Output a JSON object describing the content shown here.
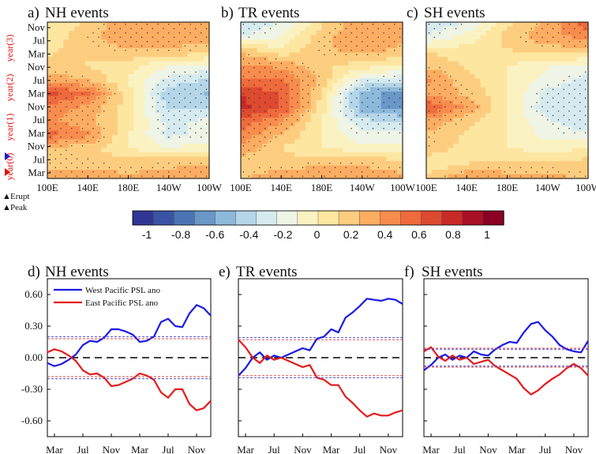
{
  "chart_data": [
    {
      "panel": "a)",
      "title": "NH events",
      "type": "heatmap",
      "x_ticks": [
        "100E",
        "140E",
        "180E",
        "140W",
        "100W"
      ],
      "y_ticks": [
        "Nov",
        "Jul",
        "Mar",
        "Nov",
        "Jul",
        "Mar",
        "Nov",
        "Jul",
        "Mar",
        "Nov",
        "Jul",
        "Mar"
      ],
      "year_labels": [
        "year(3)",
        "year(2)",
        "year(1)",
        "year(0)"
      ],
      "markers": [
        {
          "kind": "Erupt",
          "month": "Jan",
          "year": 0
        },
        {
          "kind": "Peak",
          "month": "Sep",
          "year": 0
        }
      ],
      "pattern_rows": [
        {
          "month": "Nov",
          "year": 3,
          "values": [
            0.0,
            0.15,
            0.3,
            0.3,
            0.3
          ]
        },
        {
          "month": "Jul",
          "year": 3,
          "values": [
            0.05,
            0.2,
            0.3,
            0.3,
            0.25
          ]
        },
        {
          "month": "Mar",
          "year": 3,
          "values": [
            0.1,
            0.15,
            0.2,
            0.2,
            0.15
          ]
        },
        {
          "month": "Nov",
          "year": 2,
          "values": [
            0.15,
            0.1,
            0.05,
            -0.1,
            -0.15
          ]
        },
        {
          "month": "Jul",
          "year": 2,
          "values": [
            0.3,
            0.2,
            0.0,
            -0.25,
            -0.35
          ]
        },
        {
          "month": "Mar",
          "year": 2,
          "values": [
            0.6,
            0.45,
            0.05,
            -0.4,
            -0.45
          ]
        },
        {
          "month": "Nov",
          "year": 1,
          "values": [
            0.4,
            0.3,
            0.05,
            -0.35,
            -0.35
          ]
        },
        {
          "month": "Jul",
          "year": 1,
          "values": [
            0.35,
            0.25,
            0.05,
            -0.25,
            -0.2
          ]
        },
        {
          "month": "Mar",
          "year": 1,
          "values": [
            0.5,
            0.35,
            0.0,
            -0.25,
            -0.2
          ]
        },
        {
          "month": "Nov",
          "year": 0,
          "values": [
            0.2,
            0.15,
            0.0,
            -0.1,
            -0.05
          ]
        },
        {
          "month": "Jul",
          "year": 0,
          "values": [
            0.2,
            0.2,
            0.15,
            0.2,
            0.2
          ]
        },
        {
          "month": "Mar",
          "year": 0,
          "values": [
            0.25,
            0.25,
            0.25,
            0.25,
            0.3
          ]
        }
      ]
    },
    {
      "panel": "b)",
      "title": "TR events",
      "type": "heatmap",
      "x_ticks": [
        "100E",
        "140E",
        "180E",
        "140W",
        "100W"
      ],
      "pattern_rows": [
        {
          "month": "Nov",
          "year": 3,
          "values": [
            -0.3,
            -0.2,
            0.1,
            0.3,
            0.3
          ]
        },
        {
          "month": "Jul",
          "year": 3,
          "values": [
            -0.2,
            -0.1,
            0.2,
            0.3,
            0.25
          ]
        },
        {
          "month": "Mar",
          "year": 3,
          "values": [
            0.2,
            0.05,
            0.2,
            0.25,
            0.2
          ]
        },
        {
          "month": "Nov",
          "year": 2,
          "values": [
            0.35,
            0.3,
            0.15,
            0.05,
            0.0
          ]
        },
        {
          "month": "Jul",
          "year": 2,
          "values": [
            0.45,
            0.45,
            0.2,
            -0.2,
            -0.3
          ]
        },
        {
          "month": "Mar",
          "year": 2,
          "values": [
            0.65,
            0.55,
            0.1,
            -0.5,
            -0.6
          ]
        },
        {
          "month": "Nov",
          "year": 1,
          "values": [
            0.7,
            0.55,
            0.05,
            -0.5,
            -0.6
          ]
        },
        {
          "month": "Jul",
          "year": 1,
          "values": [
            0.5,
            0.35,
            0.0,
            -0.3,
            -0.35
          ]
        },
        {
          "month": "Mar",
          "year": 1,
          "values": [
            0.4,
            0.2,
            0.0,
            -0.2,
            -0.2
          ]
        },
        {
          "month": "Nov",
          "year": 0,
          "values": [
            0.3,
            0.1,
            0.0,
            -0.05,
            -0.05
          ]
        },
        {
          "month": "Jul",
          "year": 0,
          "values": [
            0.15,
            0.15,
            0.2,
            0.2,
            0.15
          ]
        },
        {
          "month": "Mar",
          "year": 0,
          "values": [
            0.2,
            0.3,
            0.3,
            0.3,
            0.25
          ]
        }
      ]
    },
    {
      "panel": "c)",
      "title": "SH events",
      "type": "heatmap",
      "x_ticks": [
        "100E",
        "140E",
        "180E",
        "140W",
        "100W"
      ],
      "pattern_rows": [
        {
          "month": "Nov",
          "year": 3,
          "values": [
            -0.3,
            -0.2,
            0.1,
            0.25,
            0.5
          ]
        },
        {
          "month": "Jul",
          "year": 3,
          "values": [
            -0.2,
            -0.05,
            0.15,
            0.3,
            0.35
          ]
        },
        {
          "month": "Mar",
          "year": 3,
          "values": [
            0.1,
            0.05,
            0.1,
            0.15,
            0.15
          ]
        },
        {
          "month": "Nov",
          "year": 2,
          "values": [
            0.2,
            0.1,
            0.0,
            -0.1,
            -0.15
          ]
        },
        {
          "month": "Jul",
          "year": 2,
          "values": [
            0.35,
            0.15,
            0.0,
            -0.15,
            -0.25
          ]
        },
        {
          "month": "Mar",
          "year": 2,
          "values": [
            0.3,
            0.2,
            0.0,
            -0.25,
            -0.3
          ]
        },
        {
          "month": "Nov",
          "year": 1,
          "values": [
            0.55,
            0.3,
            0.0,
            -0.3,
            -0.3
          ]
        },
        {
          "month": "Jul",
          "year": 1,
          "values": [
            0.3,
            0.15,
            0.0,
            -0.2,
            -0.3
          ]
        },
        {
          "month": "Mar",
          "year": 1,
          "values": [
            0.2,
            0.1,
            0.0,
            -0.15,
            -0.2
          ]
        },
        {
          "month": "Nov",
          "year": 0,
          "values": [
            0.2,
            0.05,
            0.0,
            -0.05,
            0.0
          ]
        },
        {
          "month": "Jul",
          "year": 0,
          "values": [
            0.0,
            0.1,
            0.15,
            0.15,
            0.15
          ]
        },
        {
          "month": "Mar",
          "year": 0,
          "values": [
            0.15,
            0.3,
            0.25,
            0.25,
            0.2
          ]
        }
      ]
    },
    {
      "panel": "d)",
      "title": "NH events",
      "type": "line",
      "ylim": [
        -0.75,
        0.75
      ],
      "y_ticks": [
        "0.60",
        "0.30",
        "0.00",
        "-0.30",
        "-0.60"
      ],
      "y_tick_values": [
        0.6,
        0.3,
        0.0,
        -0.3,
        -0.6
      ],
      "x_ticks": [
        "Mar",
        "Jul",
        "Nov",
        "Mar",
        "Jul",
        "Nov"
      ],
      "x_tick_positions": [
        1,
        5,
        9,
        13,
        17,
        21
      ],
      "legend": [
        "West Pacific PSL ano",
        "East Pacific PSL ano"
      ],
      "series": [
        {
          "name": "West Pacific PSL ano",
          "color": "#1a1ae6",
          "x": [
            0,
            1,
            2,
            3,
            4,
            5,
            6,
            7,
            8,
            9,
            10,
            11,
            12,
            13,
            14,
            15,
            16,
            17,
            18,
            19,
            20,
            21,
            22,
            23
          ],
          "values": [
            -0.05,
            -0.08,
            -0.06,
            -0.02,
            0.03,
            0.12,
            0.16,
            0.15,
            0.19,
            0.27,
            0.27,
            0.25,
            0.22,
            0.15,
            0.16,
            0.2,
            0.34,
            0.37,
            0.3,
            0.29,
            0.42,
            0.5,
            0.47,
            0.4
          ]
        },
        {
          "name": "East Pacific PSL ano",
          "color": "#e61a1a",
          "x": [
            0,
            1,
            2,
            3,
            4,
            5,
            6,
            7,
            8,
            9,
            10,
            11,
            12,
            13,
            14,
            15,
            16,
            17,
            18,
            19,
            20,
            21,
            22,
            23
          ],
          "values": [
            0.05,
            0.08,
            0.06,
            0.02,
            -0.03,
            -0.12,
            -0.16,
            -0.15,
            -0.19,
            -0.27,
            -0.26,
            -0.23,
            -0.2,
            -0.15,
            -0.17,
            -0.21,
            -0.33,
            -0.38,
            -0.3,
            -0.3,
            -0.44,
            -0.5,
            -0.48,
            -0.41
          ]
        },
        {
          "name": "",
          "color": "#3232d6",
          "style": "dashed",
          "x": [
            0,
            23
          ],
          "values": [
            0.2,
            0.2
          ]
        },
        {
          "name": "",
          "color": "#3232d6",
          "style": "dashed",
          "x": [
            0,
            23
          ],
          "values": [
            -0.2,
            -0.2
          ]
        },
        {
          "name": "",
          "color": "#e04040",
          "style": "dashed",
          "x": [
            0,
            23
          ],
          "values": [
            0.18,
            0.18
          ]
        },
        {
          "name": "",
          "color": "#e04040",
          "style": "dashed",
          "x": [
            0,
            23
          ],
          "values": [
            -0.18,
            -0.18
          ]
        }
      ]
    },
    {
      "panel": "e)",
      "title": "TR events",
      "type": "line",
      "ylim": [
        -0.75,
        0.75
      ],
      "x_ticks": [
        "Mar",
        "Jul",
        "Nov",
        "Mar",
        "Jul",
        "Nov"
      ],
      "x_tick_positions": [
        1,
        5,
        9,
        13,
        17,
        21
      ],
      "series": [
        {
          "name": "West Pacific PSL ano",
          "color": "#1a1ae6",
          "x": [
            0,
            1,
            2,
            3,
            4,
            5,
            6,
            7,
            8,
            9,
            10,
            11,
            12,
            13,
            14,
            15,
            16,
            17,
            18,
            19,
            20,
            21,
            22,
            23
          ],
          "values": [
            -0.17,
            -0.1,
            0.0,
            0.05,
            -0.02,
            0.02,
            0.0,
            0.03,
            0.06,
            0.09,
            0.07,
            0.18,
            0.2,
            0.27,
            0.24,
            0.38,
            0.43,
            0.49,
            0.56,
            0.55,
            0.54,
            0.56,
            0.55,
            0.51
          ]
        },
        {
          "name": "East Pacific PSL ano",
          "color": "#e61a1a",
          "x": [
            0,
            1,
            2,
            3,
            4,
            5,
            6,
            7,
            8,
            9,
            10,
            11,
            12,
            13,
            14,
            15,
            16,
            17,
            18,
            19,
            20,
            21,
            22,
            23
          ],
          "values": [
            0.17,
            0.1,
            0.0,
            -0.05,
            0.02,
            -0.02,
            0.0,
            -0.03,
            -0.06,
            -0.09,
            -0.07,
            -0.19,
            -0.21,
            -0.26,
            -0.26,
            -0.37,
            -0.43,
            -0.5,
            -0.56,
            -0.53,
            -0.55,
            -0.55,
            -0.52,
            -0.5
          ]
        },
        {
          "name": "",
          "color": "#3232d6",
          "style": "dashed",
          "x": [
            0,
            23
          ],
          "values": [
            0.19,
            0.19
          ]
        },
        {
          "name": "",
          "color": "#3232d6",
          "style": "dashed",
          "x": [
            0,
            23
          ],
          "values": [
            -0.19,
            -0.19
          ]
        },
        {
          "name": "",
          "color": "#e04040",
          "style": "dashed",
          "x": [
            0,
            23
          ],
          "values": [
            0.17,
            0.17
          ]
        },
        {
          "name": "",
          "color": "#e04040",
          "style": "dashed",
          "x": [
            0,
            23
          ],
          "values": [
            -0.17,
            -0.17
          ]
        }
      ]
    },
    {
      "panel": "f)",
      "title": "SH events",
      "type": "line",
      "ylim": [
        -0.75,
        0.75
      ],
      "x_ticks": [
        "Mar",
        "Jul",
        "Nov",
        "Mar",
        "Jul",
        "Nov"
      ],
      "x_tick_positions": [
        1,
        5,
        9,
        13,
        17,
        21
      ],
      "series": [
        {
          "name": "West Pacific PSL ano",
          "color": "#1a1ae6",
          "x": [
            0,
            1,
            2,
            3,
            4,
            5,
            6,
            7,
            8,
            9,
            10,
            11,
            12,
            13,
            14,
            15,
            16,
            17,
            18,
            19,
            20,
            21,
            22,
            23
          ],
          "values": [
            -0.12,
            -0.07,
            0.0,
            0.03,
            -0.02,
            0.02,
            0.0,
            0.06,
            0.03,
            0.02,
            0.08,
            0.12,
            0.15,
            0.14,
            0.24,
            0.32,
            0.34,
            0.26,
            0.2,
            0.12,
            0.08,
            0.06,
            0.05,
            0.16
          ]
        },
        {
          "name": "East Pacific PSL ano",
          "color": "#e61a1a",
          "x": [
            0,
            1,
            2,
            3,
            4,
            5,
            6,
            7,
            8,
            9,
            10,
            11,
            12,
            13,
            14,
            15,
            16,
            17,
            18,
            19,
            20,
            21,
            22,
            23
          ],
          "values": [
            0.06,
            0.1,
            0.01,
            -0.03,
            0.02,
            -0.02,
            0.0,
            -0.06,
            -0.04,
            -0.02,
            -0.08,
            -0.12,
            -0.16,
            -0.2,
            -0.29,
            -0.35,
            -0.31,
            -0.25,
            -0.2,
            -0.16,
            -0.1,
            -0.06,
            -0.1,
            -0.17
          ]
        },
        {
          "name": "",
          "color": "#3232d6",
          "style": "dashed",
          "x": [
            0,
            23
          ],
          "values": [
            0.08,
            0.08
          ]
        },
        {
          "name": "",
          "color": "#3232d6",
          "style": "dashed",
          "x": [
            0,
            23
          ],
          "values": [
            -0.08,
            -0.08
          ]
        },
        {
          "name": "",
          "color": "#e04040",
          "style": "dashed",
          "x": [
            0,
            23
          ],
          "values": [
            0.09,
            0.09
          ]
        },
        {
          "name": "",
          "color": "#e04040",
          "style": "dashed",
          "x": [
            0,
            23
          ],
          "values": [
            -0.09,
            -0.09
          ]
        }
      ]
    }
  ],
  "colorbar": {
    "labels": [
      "-1",
      "-0.8",
      "-0.6",
      "-0.4",
      "-0.2",
      "0",
      "0.2",
      "0.4",
      "0.6",
      "0.8",
      "1"
    ],
    "colors": [
      "#313695",
      "#3a53a4",
      "#4a74b4",
      "#6a97c8",
      "#8db9db",
      "#b4d6e8",
      "#d6ebef",
      "#eef4e6",
      "#fbf2c2",
      "#fde6a0",
      "#fdcd7f",
      "#fcad62",
      "#f88c4d",
      "#ef6a3c",
      "#dd4a30",
      "#c82a26",
      "#a81026",
      "#8b0025"
    ]
  },
  "markers_legend": {
    "erupt": {
      "symbol": "▲",
      "label": "Erupt",
      "color": "#e01010"
    },
    "peak": {
      "symbol": "▲",
      "label": "Peak",
      "color": "#1a1ad0"
    }
  }
}
